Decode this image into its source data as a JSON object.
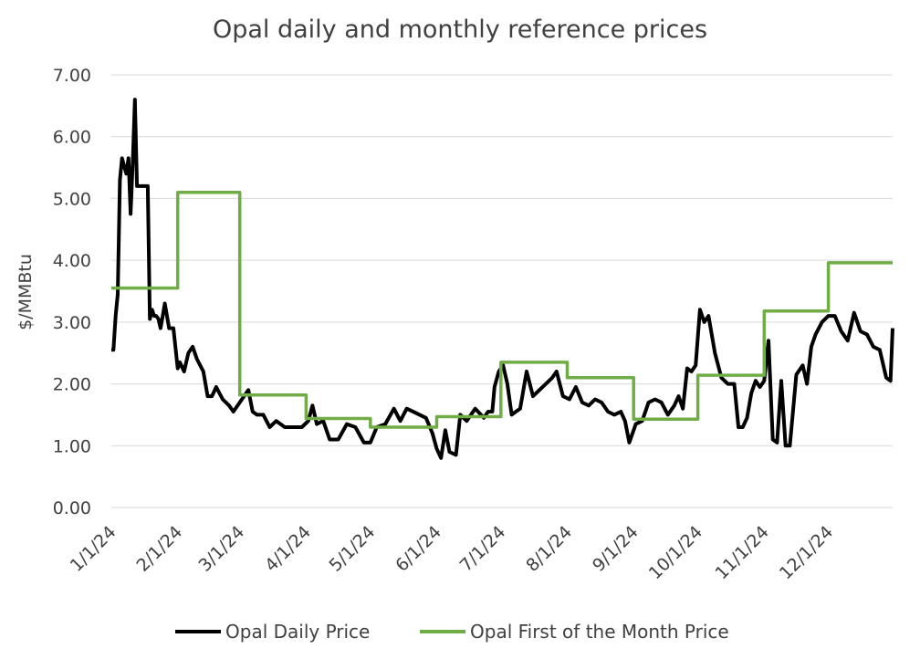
{
  "chart_data": {
    "type": "line",
    "title": "Opal daily and monthly reference prices",
    "xlabel": "",
    "ylabel": "$/MMBtu",
    "ylim": [
      0,
      7
    ],
    "yticks": [
      "0.00",
      "1.00",
      "2.00",
      "3.00",
      "4.00",
      "5.00",
      "6.00",
      "7.00"
    ],
    "xlim": [
      "1/1/24",
      "12/31/24"
    ],
    "xticks": [
      "1/1/24",
      "2/1/24",
      "3/1/24",
      "4/1/24",
      "5/1/24",
      "6/1/24",
      "7/1/24",
      "8/1/24",
      "9/1/24",
      "10/1/24",
      "11/1/24",
      "12/1/24"
    ],
    "grid": true,
    "legend": "bottom",
    "series": [
      {
        "name": "Opal Daily Price",
        "color": "#000000",
        "x": [
          "1/1/24",
          "1/2/24",
          "1/3/24",
          "1/4/24",
          "1/5/24",
          "1/6/24",
          "1/8/24",
          "1/9/24",
          "1/10/24",
          "1/11/24",
          "1/12/24",
          "1/13/24",
          "1/14/24",
          "1/15/24",
          "1/16/24",
          "1/17/24",
          "1/18/24",
          "1/19/24",
          "1/20/24",
          "1/21/24",
          "1/22/24",
          "1/23/24",
          "1/24/24",
          "1/25/24",
          "1/26/24",
          "1/28/24",
          "1/30/24",
          "2/1/24",
          "2/2/24",
          "2/4/24",
          "2/6/24",
          "2/8/24",
          "2/10/24",
          "2/13/24",
          "2/15/24",
          "2/17/24",
          "2/19/24",
          "2/22/24",
          "2/25/24",
          "2/27/24",
          "3/1/24",
          "3/3/24",
          "3/5/24",
          "3/7/24",
          "3/9/24",
          "3/12/24",
          "3/15/24",
          "3/18/24",
          "3/22/24",
          "3/26/24",
          "3/30/24",
          "4/2/24",
          "4/4/24",
          "4/6/24",
          "4/9/24",
          "4/12/24",
          "4/16/24",
          "4/20/24",
          "4/24/24",
          "4/28/24",
          "5/1/24",
          "5/4/24",
          "5/8/24",
          "5/12/24",
          "5/15/24",
          "5/18/24",
          "5/21/24",
          "5/24/24",
          "5/27/24",
          "5/30/24",
          "6/1/24",
          "6/3/24",
          "6/5/24",
          "6/7/24",
          "6/10/24",
          "6/12/24",
          "6/15/24",
          "6/19/24",
          "6/23/24",
          "6/25/24",
          "6/27/24",
          "6/28/24",
          "6/30/24",
          "7/2/24",
          "7/4/24",
          "7/6/24",
          "7/8/24",
          "7/10/24",
          "7/13/24",
          "7/16/24",
          "7/19/24",
          "7/22/24",
          "7/25/24",
          "7/27/24",
          "7/30/24",
          "8/2/24",
          "8/5/24",
          "8/8/24",
          "8/11/24",
          "8/14/24",
          "8/17/24",
          "8/20/24",
          "8/23/24",
          "8/26/24",
          "8/28/24",
          "8/30/24",
          "9/2/24",
          "9/5/24",
          "9/8/24",
          "9/11/24",
          "9/14/24",
          "9/17/24",
          "9/20/24",
          "9/22/24",
          "9/24/24",
          "9/26/24",
          "9/28/24",
          "9/30/24",
          "10/2/24",
          "10/4/24",
          "10/6/24",
          "10/9/24",
          "10/12/24",
          "10/15/24",
          "10/18/24",
          "10/20/24",
          "10/22/24",
          "10/24/24",
          "10/26/24",
          "10/28/24",
          "10/30/24",
          "11/1/24",
          "11/3/24",
          "11/5/24",
          "11/7/24",
          "11/9/24",
          "11/11/24",
          "11/13/24",
          "11/16/24",
          "11/19/24",
          "11/21/24",
          "11/23/24",
          "11/25/24",
          "11/28/24",
          "12/1/24",
          "12/4/24",
          "12/7/24",
          "12/10/24",
          "12/13/24",
          "12/16/24",
          "12/19/24",
          "12/22/24",
          "12/25/24",
          "12/28/24",
          "12/30/24",
          "12/31/24"
        ],
        "values": [
          2.55,
          2.55,
          3.1,
          3.45,
          5.3,
          5.65,
          5.4,
          5.65,
          4.75,
          5.6,
          6.6,
          5.2,
          5.2,
          5.2,
          5.2,
          5.2,
          5.2,
          3.05,
          3.2,
          3.1,
          3.1,
          3.05,
          2.9,
          3.1,
          3.3,
          2.9,
          2.9,
          2.25,
          2.35,
          2.2,
          2.5,
          2.6,
          2.4,
          2.2,
          1.8,
          1.8,
          1.95,
          1.75,
          1.65,
          1.55,
          1.7,
          1.8,
          1.9,
          1.55,
          1.5,
          1.5,
          1.3,
          1.4,
          1.3,
          1.3,
          1.3,
          1.4,
          1.65,
          1.35,
          1.4,
          1.1,
          1.1,
          1.35,
          1.3,
          1.05,
          1.05,
          1.3,
          1.35,
          1.6,
          1.4,
          1.6,
          1.55,
          1.5,
          1.45,
          1.2,
          0.95,
          0.8,
          1.25,
          0.9,
          0.85,
          1.5,
          1.4,
          1.6,
          1.45,
          1.55,
          1.55,
          1.95,
          2.2,
          2.3,
          2.0,
          1.5,
          1.55,
          1.6,
          2.2,
          1.8,
          1.9,
          2.0,
          2.1,
          2.2,
          1.8,
          1.75,
          1.95,
          1.7,
          1.65,
          1.75,
          1.7,
          1.55,
          1.5,
          1.55,
          1.4,
          1.05,
          1.35,
          1.4,
          1.7,
          1.75,
          1.7,
          1.5,
          1.65,
          1.8,
          1.6,
          2.25,
          2.2,
          2.3,
          3.2,
          3.0,
          3.1,
          2.5,
          2.1,
          2.0,
          2.0,
          1.3,
          1.3,
          1.45,
          1.85,
          2.05,
          1.95,
          2.05,
          2.7,
          1.1,
          1.05,
          2.05,
          1.0,
          1.0,
          2.15,
          2.3,
          2.0,
          2.6,
          2.8,
          3.0,
          3.1,
          3.1,
          2.85,
          2.7,
          3.15,
          2.85,
          2.8,
          2.6,
          2.55,
          2.1,
          2.05,
          2.9
        ]
      },
      {
        "name": "Opal First of the Month Price",
        "color": "#70ad47",
        "x": [
          "1/1/24",
          "2/1/24",
          "3/1/24",
          "4/1/24",
          "5/1/24",
          "6/1/24",
          "7/1/24",
          "8/1/24",
          "9/1/24",
          "10/1/24",
          "11/1/24",
          "12/1/24",
          "12/31/24"
        ],
        "values": [
          3.55,
          5.1,
          1.82,
          1.44,
          1.3,
          1.47,
          2.35,
          2.1,
          1.43,
          2.14,
          3.18,
          3.96,
          3.96
        ]
      }
    ]
  }
}
